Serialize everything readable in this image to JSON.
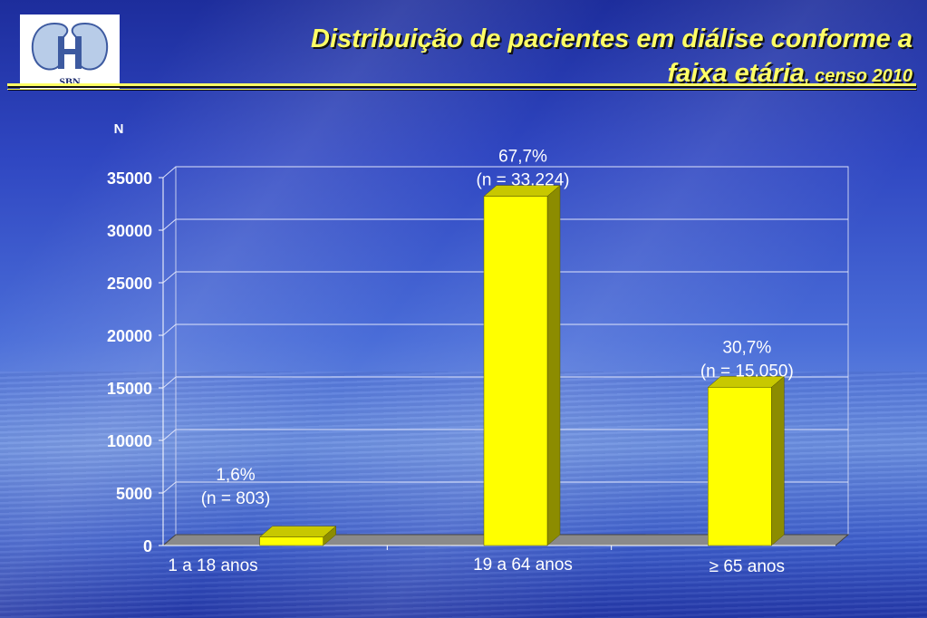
{
  "logo": {
    "text": "SBN"
  },
  "slide": {
    "title_line1": "Distribuição de pacientes em diálise conforme a",
    "title_line2": "faixa etária",
    "title_suffix": ", censo 2010"
  },
  "chart_data": {
    "type": "bar",
    "ylabel": "N",
    "ylim": [
      0,
      35000
    ],
    "yticks": [
      "0",
      "5000",
      "10000",
      "15000",
      "20000",
      "25000",
      "30000",
      "35000"
    ],
    "categories": [
      "1 a 18 anos",
      "19 a 64 anos",
      "≥ 65 anos"
    ],
    "values": [
      803,
      33224,
      15050
    ],
    "labels": [
      [
        "1,6%",
        "(n =  803)"
      ],
      [
        "67,7%",
        "(n = 33.224)"
      ],
      [
        "30,7%",
        "(n = 15.050)"
      ]
    ],
    "grid": true,
    "colors": {
      "bar_front": "#ffff00",
      "bar_side": "#8c8c00",
      "bar_top": "#c8c800"
    }
  }
}
